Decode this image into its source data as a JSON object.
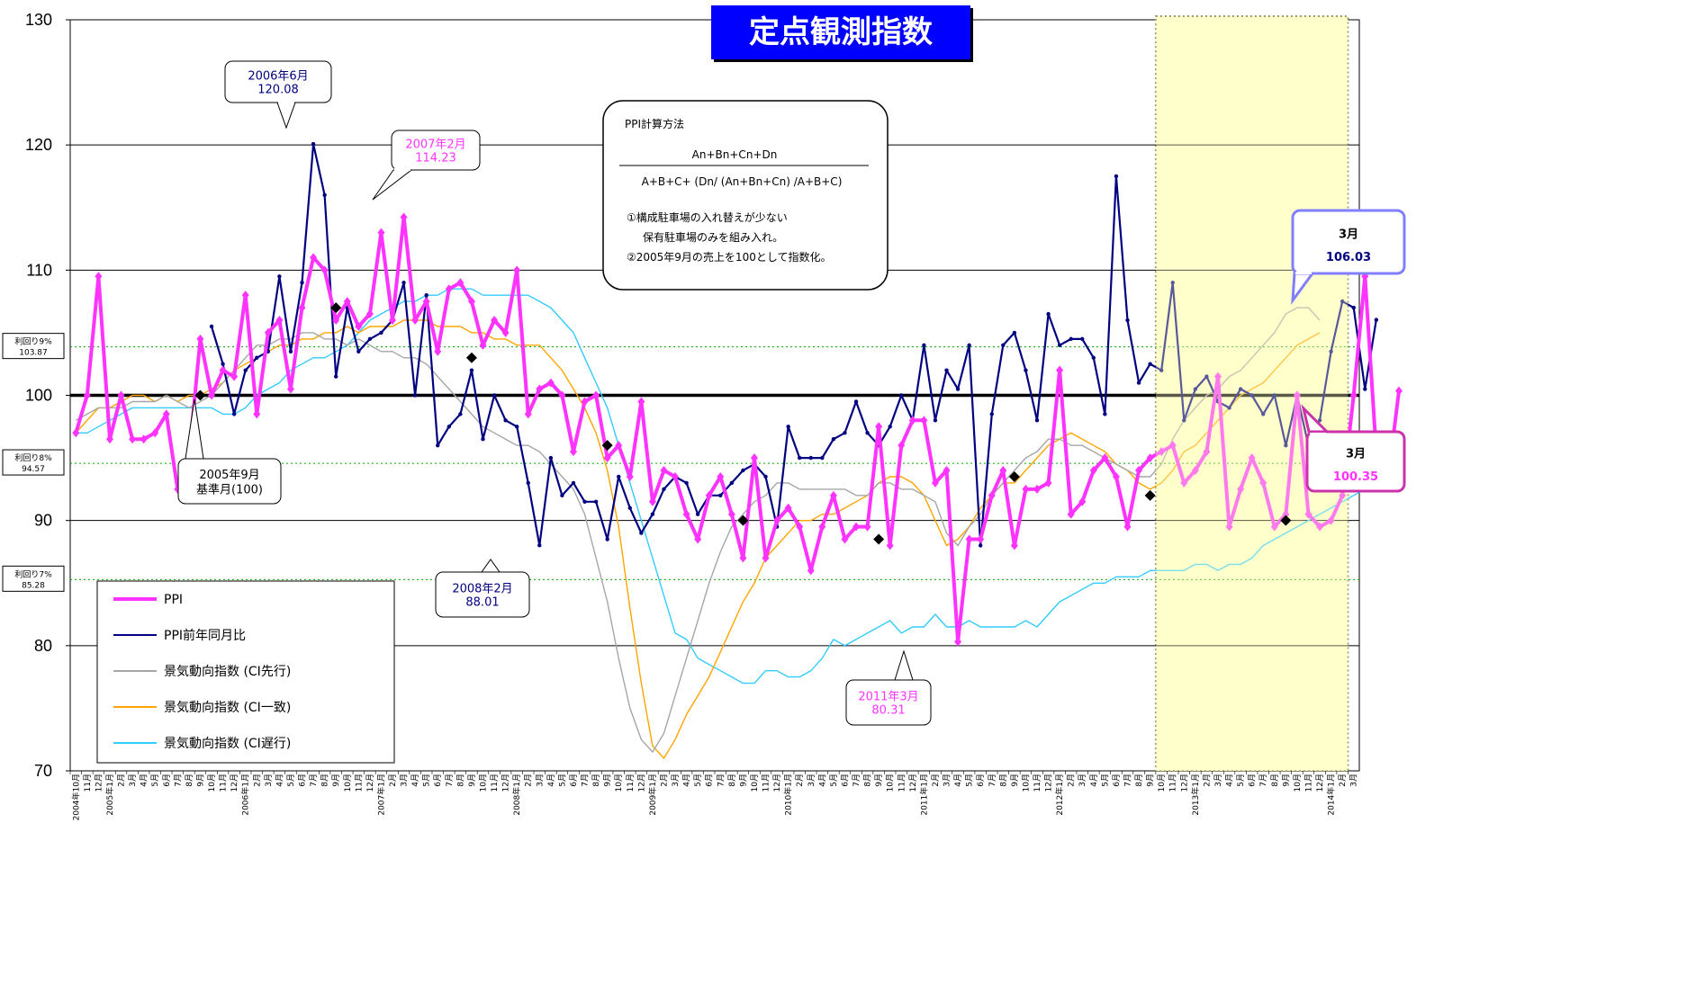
{
  "title": "定点観測指数",
  "colors": {
    "ppi": "#ff33ff",
    "yoy": "#000080",
    "leading": "#a6a6a6",
    "coincident": "#ffa500",
    "lagging": "#33ccff",
    "highlight": "#ffffcc",
    "title_bg": "#0000ff"
  },
  "yield_labels": [
    {
      "line1": "利回り9%",
      "line2": "103.87",
      "value": 103.87
    },
    {
      "line1": "利回り8%",
      "line2": "94.57",
      "value": 94.57
    },
    {
      "line1": "利回り7%",
      "line2": "85.28",
      "value": 85.28
    }
  ],
  "legend": [
    {
      "label": "PPI",
      "series": "ppi"
    },
    {
      "label": "PPI前年同月比",
      "series": "yoy"
    },
    {
      "label": "景気動向指数 (CI先行)",
      "series": "leading"
    },
    {
      "label": "景気動向指数 (CI一致)",
      "series": "coincident"
    },
    {
      "label": "景気動向指数 (CI遅行)",
      "series": "lagging"
    }
  ],
  "note": {
    "heading": "PPI計算方法",
    "numerator": "An+Bn+Cn+Dn",
    "denominator": "A+B+C+ (Dn/ (An+Bn+Cn) /A+B+C)",
    "line1": "①構成駐車場の入れ替えが少ない",
    "line2": "保有駐車場のみを組み入れ。",
    "line3": "②2005年9月の売上を100として指数化。"
  },
  "callouts": {
    "c2006": {
      "line1": "2006年6月",
      "line2": "120.08"
    },
    "c2007": {
      "line1": "2007年2月",
      "line2": "114.23"
    },
    "c2005": {
      "line1": "2005年9月",
      "line2": "基準月(100)"
    },
    "c2008": {
      "line1": "2008年2月",
      "line2": "88.01"
    },
    "c2011": {
      "line1": "2011年3月",
      "line2": "80.31"
    },
    "yoy_latest": {
      "line1": "3月",
      "line2": "106.03"
    },
    "ppi_latest": {
      "line1": "3月",
      "line2": "100.35"
    }
  },
  "chart_data": {
    "type": "line",
    "title": "定点観測指数",
    "ylim": [
      70,
      130
    ],
    "yticks": [
      70,
      80,
      90,
      100,
      110,
      120,
      130
    ],
    "grid": true,
    "legend_position": "bottom-left",
    "x_start": "2004-10",
    "x_end": "2014-03",
    "month_tick_labels": [
      "1月",
      "2月",
      "3月",
      "4月",
      "5月",
      "6月",
      "7月",
      "8月",
      "9月",
      "10月",
      "11月",
      "12月"
    ],
    "year_labels": [
      "2004年",
      "2005年",
      "2006年",
      "2007年",
      "2008年",
      "2009年",
      "2010年",
      "2011年",
      "2012年",
      "2013年",
      "2014年"
    ],
    "highlight_range": [
      "2012-10",
      "2014-02"
    ],
    "reference_line": 100,
    "series": [
      {
        "name": "PPI",
        "key": "ppi",
        "start": "2004-10",
        "values": [
          97,
          100,
          109.5,
          96.5,
          100,
          96.5,
          96.5,
          97,
          98.5,
          92.5,
          95,
          104.5,
          100,
          102,
          101.5,
          108,
          98.5,
          105,
          106,
          100.5,
          107,
          111,
          110,
          106,
          107.5,
          105.5,
          106.5,
          113,
          106,
          114.23,
          106,
          107.5,
          103.5,
          108.5,
          109,
          107.5,
          104,
          106,
          105,
          110,
          98.5,
          100.5,
          101,
          100,
          95.5,
          99.5,
          100,
          95,
          96,
          93.5,
          99.5,
          91.5,
          94,
          93.5,
          90.5,
          88.5,
          92,
          93.5,
          90.5,
          87,
          95,
          87,
          90,
          91,
          89.5,
          86,
          89.5,
          92,
          88.5,
          89.5,
          89.5,
          97.5,
          88,
          96,
          98,
          98,
          93,
          94,
          80.31,
          88.5,
          88.5,
          92,
          94,
          88,
          92.5,
          92.5,
          93,
          102,
          90.5,
          91.5,
          94,
          95,
          93.5,
          89.5,
          94,
          95,
          95.5,
          96,
          93,
          94,
          95.5,
          101.5,
          89.5,
          92.5,
          95,
          93,
          89.5,
          90.5,
          100,
          90.5,
          89.5,
          90,
          92,
          100,
          109.5,
          95.5,
          93,
          100.35
        ]
      },
      {
        "name": "PPI前年同月比",
        "key": "yoy",
        "start": "2005-10",
        "values": [
          105.5,
          102.5,
          98.5,
          102,
          103,
          103.5,
          109.5,
          103.5,
          109,
          120.08,
          116,
          101.5,
          107,
          103.5,
          104.5,
          105,
          106,
          109,
          100,
          108,
          96,
          97.5,
          98.5,
          102,
          96.5,
          100,
          98,
          97.5,
          93,
          88.01,
          95,
          92,
          93,
          91.5,
          91.5,
          88.5,
          93.5,
          91,
          89,
          90.5,
          92.5,
          93.5,
          93,
          90.5,
          92,
          92,
          93,
          94,
          94.5,
          93.5,
          89.5,
          97.5,
          95,
          95,
          95,
          96.5,
          97,
          99.5,
          97,
          96,
          97.5,
          100,
          98,
          104,
          98,
          102,
          100.5,
          104,
          88,
          98.5,
          104,
          105,
          102,
          98,
          106.5,
          104,
          104.5,
          104.5,
          103,
          98.5,
          117.5,
          106,
          101,
          102.5,
          102,
          109,
          98,
          100.5,
          101.5,
          99.5,
          99,
          100.5,
          100,
          98.5,
          100,
          96,
          100,
          96,
          98,
          103.5,
          107.5,
          107,
          100.5,
          106.03
        ]
      },
      {
        "name": "景気動向指数 (CI先行)",
        "key": "leading",
        "start": "2004-10",
        "values": [
          98,
          98.5,
          99,
          99,
          99,
          99.5,
          99.5,
          99.5,
          100,
          99.5,
          99,
          99.5,
          100,
          101,
          102,
          103,
          104,
          104,
          104.5,
          104.5,
          105,
          105,
          104.5,
          104.5,
          104,
          104.5,
          104,
          103.5,
          103.5,
          103,
          103,
          102.5,
          101.5,
          100.5,
          99.5,
          98.5,
          97.5,
          97,
          96.5,
          96,
          96,
          95.5,
          94.5,
          93.5,
          92.5,
          90.5,
          87,
          83.5,
          79,
          75,
          72.5,
          71.5,
          73,
          76,
          79,
          82,
          85,
          87.5,
          89.5,
          90.5,
          91.5,
          92,
          93,
          93,
          92.5,
          92.5,
          92.5,
          92.5,
          92.5,
          92,
          92,
          93,
          93,
          92.5,
          92.5,
          92,
          91.5,
          89,
          88,
          89.5,
          90.5,
          92,
          93,
          94,
          95,
          95.5,
          96.5,
          96.5,
          96,
          96,
          95.5,
          95,
          94.5,
          94,
          93.5,
          93.5,
          94.5,
          96.5,
          98,
          99,
          100,
          100.5,
          101.5,
          102,
          103,
          104,
          105,
          106.5,
          107,
          107,
          106
        ]
      },
      {
        "name": "景気動向指数 (CI一致)",
        "key": "coincident",
        "start": "2004-10",
        "values": [
          97,
          98,
          99,
          99,
          99.5,
          100,
          100,
          99.5,
          100,
          99.5,
          100,
          100,
          100.5,
          101,
          102,
          102.5,
          103,
          103.5,
          104,
          104,
          104.5,
          104.5,
          105,
          105,
          105.5,
          105,
          105.5,
          105.5,
          105.5,
          106,
          106,
          106,
          105.5,
          105.5,
          105.5,
          105,
          105,
          104.5,
          104.5,
          104,
          104,
          104,
          103,
          102,
          100.5,
          99,
          97,
          94,
          89.5,
          83,
          77,
          72,
          71,
          72.5,
          74.5,
          76,
          77.5,
          79.5,
          81.5,
          83.5,
          85,
          87,
          88,
          89,
          90,
          90,
          90.5,
          90.5,
          91,
          91.5,
          92,
          93,
          93.5,
          93.5,
          93,
          92,
          90,
          88,
          88.5,
          89.5,
          91,
          92,
          93,
          93,
          94,
          95,
          96,
          96.5,
          97,
          96.5,
          96,
          95.5,
          94.5,
          94,
          93,
          92.5,
          93,
          94,
          95.5,
          96,
          97,
          98,
          99,
          100,
          100.5,
          101,
          102,
          103,
          104,
          104.5,
          105
        ]
      },
      {
        "name": "景気動向指数 (CI遅行)",
        "key": "lagging",
        "start": "2004-10",
        "values": [
          97,
          97,
          97.5,
          98,
          98.5,
          99,
          99,
          99,
          99,
          99,
          99,
          99,
          99,
          98.5,
          98.5,
          99,
          100,
          100.5,
          101,
          102,
          102.5,
          103,
          103,
          103.5,
          104,
          105,
          106,
          106.5,
          107,
          107.5,
          107.5,
          108,
          108,
          108.5,
          108.5,
          108.5,
          108,
          108,
          108,
          108,
          108,
          107.5,
          107,
          106,
          105,
          103,
          101,
          99,
          96,
          93,
          90,
          87,
          84,
          81,
          80.5,
          79,
          78.5,
          78,
          77.5,
          77,
          77,
          78,
          78,
          77.5,
          77.5,
          78,
          79,
          80.5,
          80,
          80.5,
          81,
          81.5,
          82,
          81,
          81.5,
          81.5,
          82.5,
          81.5,
          81.5,
          82,
          81.5,
          81.5,
          81.5,
          81.5,
          82,
          81.5,
          82.5,
          83.5,
          84,
          84.5,
          85,
          85,
          85.5,
          85.5,
          85.5,
          86,
          86,
          86,
          86,
          86.5,
          86.5,
          86,
          86.5,
          86.5,
          87,
          88,
          88.5,
          89,
          89.5,
          90,
          90.5,
          91,
          91.5,
          92,
          92.5,
          93
        ]
      }
    ],
    "markers": [
      {
        "date": "2005-09",
        "value": 100
      },
      {
        "date": "2006-09",
        "value": 107
      },
      {
        "date": "2007-09",
        "value": 103
      },
      {
        "date": "2008-09",
        "value": 96
      },
      {
        "date": "2009-09",
        "value": 90
      },
      {
        "date": "2010-09",
        "value": 88.5
      },
      {
        "date": "2011-09",
        "value": 93.5
      },
      {
        "date": "2012-09",
        "value": 92
      },
      {
        "date": "2013-09",
        "value": 90
      }
    ]
  }
}
